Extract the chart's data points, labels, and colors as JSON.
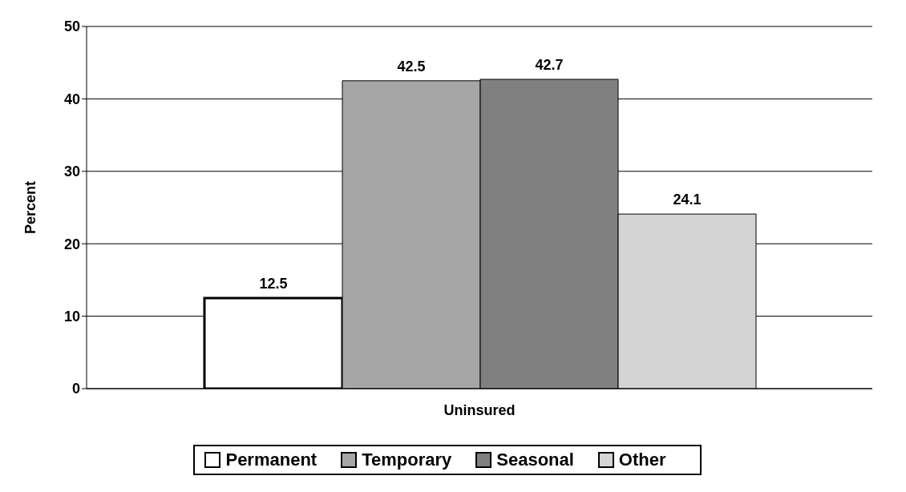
{
  "chart_data": {
    "type": "bar",
    "categories": [
      "Uninsured"
    ],
    "ylabel": "Percent",
    "ylim": [
      0,
      50
    ],
    "yticks": [
      0,
      10,
      20,
      30,
      40,
      50
    ],
    "grid": "y",
    "legend": "bottom",
    "data_labels": true,
    "series": [
      {
        "name": "Permanent",
        "color": "#ffffff",
        "values": [
          12.5
        ]
      },
      {
        "name": "Temporary",
        "color": "#a6a6a6",
        "values": [
          42.5
        ]
      },
      {
        "name": "Seasonal",
        "color": "#808080",
        "values": [
          42.7
        ]
      },
      {
        "name": "Other",
        "color": "#d4d4d4",
        "values": [
          24.1
        ]
      }
    ]
  }
}
